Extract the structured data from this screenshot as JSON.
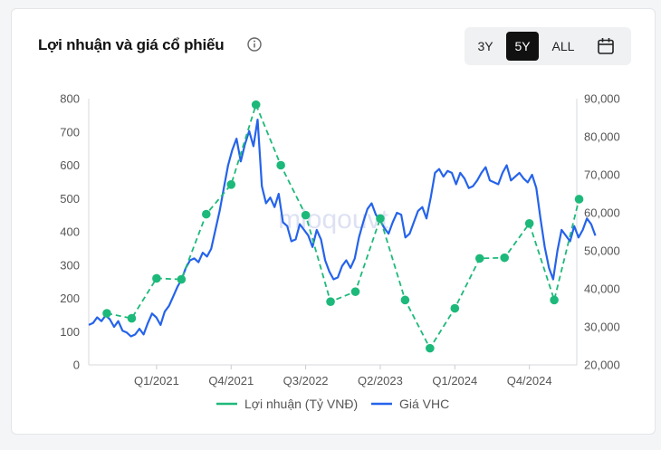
{
  "header": {
    "title": "Lợi nhuận và giá cổ phiếu",
    "ranges": [
      "3Y",
      "5Y",
      "ALL"
    ],
    "active_range": "5Y"
  },
  "watermark": "mioqouvt",
  "colors": {
    "profit": "#1db97a",
    "price": "#2563eb",
    "active_bg": "#111111"
  },
  "chart_data": {
    "type": "line",
    "x_ticks": [
      "Q1/2021",
      "Q4/2021",
      "Q3/2022",
      "Q2/2023",
      "Q1/2024",
      "Q4/2024"
    ],
    "y_left": {
      "ticks": [
        0,
        100,
        200,
        300,
        400,
        500,
        600,
        700,
        800
      ],
      "range": [
        0,
        800
      ]
    },
    "y_right": {
      "ticks": [
        "20,000",
        "30,000",
        "40,000",
        "50,000",
        "60,000",
        "70,000",
        "80,000",
        "90,000"
      ],
      "range": [
        20000,
        90000
      ]
    },
    "grid": false,
    "legend_position": "bottom",
    "series": [
      {
        "name": "Lợi nhuận (Tỷ VNĐ)",
        "axis": "left",
        "style": "dashed-markers",
        "x": [
          "Q3/2020",
          "Q4/2020",
          "Q1/2021",
          "Q2/2021",
          "Q3/2021",
          "Q4/2021",
          "Q1/2022",
          "Q2/2022",
          "Q3/2022",
          "Q4/2022",
          "Q1/2023",
          "Q2/2023",
          "Q3/2023",
          "Q4/2023",
          "Q1/2024",
          "Q2/2024",
          "Q3/2024",
          "Q4/2024",
          "Q1/2025",
          "Q2/2025"
        ],
        "values": [
          155,
          140,
          260,
          257,
          453,
          542,
          782,
          600,
          450,
          190,
          220,
          440,
          195,
          50,
          170,
          320,
          322,
          425,
          195,
          498
        ]
      },
      {
        "name": "Giá VHC",
        "axis": "right",
        "style": "solid",
        "x_start": "Q3/2020",
        "x_end": "Q2/2025",
        "values": [
          30500,
          31000,
          32500,
          31500,
          33000,
          32000,
          30000,
          31500,
          29000,
          28500,
          27500,
          28000,
          29500,
          28000,
          31000,
          33500,
          32500,
          30500,
          34000,
          35500,
          38000,
          40500,
          42500,
          45500,
          47500,
          48000,
          47000,
          49500,
          48500,
          50500,
          55500,
          60500,
          66500,
          72500,
          76500,
          79500,
          73500,
          78000,
          81500,
          77500,
          84500,
          67000,
          62500,
          64000,
          61500,
          65000,
          57500,
          56500,
          52500,
          53000,
          57000,
          55500,
          54000,
          51000,
          55500,
          53000,
          47500,
          44500,
          42500,
          43000,
          46000,
          47500,
          45500,
          48000,
          53500,
          57500,
          61000,
          62500,
          59500,
          58000,
          56000,
          54500,
          57500,
          60000,
          59500,
          53500,
          54500,
          57500,
          60500,
          61500,
          58500,
          64000,
          70500,
          71500,
          69500,
          71000,
          70500,
          67500,
          70500,
          69000,
          66500,
          67000,
          68500,
          70500,
          72000,
          68500,
          68000,
          67500,
          70500,
          72500,
          68500,
          69500,
          70500,
          69000,
          68000,
          70000,
          66500,
          58500,
          51000,
          45500,
          42500,
          50000,
          55500,
          54000,
          52500,
          56500,
          53500,
          55500,
          58500,
          57000,
          54000
        ]
      }
    ]
  }
}
